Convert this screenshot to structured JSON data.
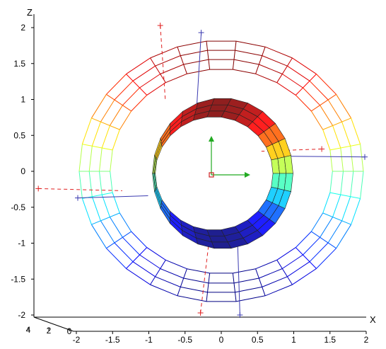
{
  "chart_data": {
    "type": "3d-wireframe-surface",
    "title": "",
    "axes": {
      "x": {
        "label": "X",
        "ticks": [
          -2,
          -1.5,
          -1,
          -0.5,
          0,
          0.5,
          1,
          1.5,
          2
        ],
        "tick_labels": [
          "-2",
          "-1.5",
          "-1",
          "-0.5",
          "0",
          "0.5",
          "1",
          "1.5",
          "2"
        ],
        "range": [
          -2,
          2
        ]
      },
      "y": {
        "label": "",
        "ticks": [
          0,
          2,
          4
        ],
        "tick_labels": [
          "0",
          "2",
          "4"
        ],
        "range": [
          0,
          4
        ]
      },
      "z": {
        "label": "Z",
        "ticks": [
          -2,
          -1.5,
          -1,
          -0.5,
          0,
          0.5,
          1,
          1.5,
          2
        ],
        "tick_labels": [
          "-2",
          "-1.5",
          "-1",
          "-0.5",
          "0",
          "0.5",
          "1",
          "1.5",
          "2"
        ],
        "range": [
          -2,
          2
        ]
      }
    },
    "objects": [
      {
        "kind": "wireframe-ring",
        "inner_radius": 1.5,
        "outer_radius": 2.0,
        "colormap": "jet-by-height"
      },
      {
        "kind": "shaded-cylinder-ring",
        "radius": 1.0,
        "colormap": "jet-by-height"
      }
    ],
    "frame_axes": [
      {
        "name": "y-arrow",
        "color": "#22aa22"
      },
      {
        "name": "x-arrow",
        "color": "#22aa22"
      },
      {
        "name": "origin-marker",
        "color": "#cc2222"
      }
    ],
    "connectors": [
      {
        "style": "dashed",
        "color": "#e02020"
      },
      {
        "style": "solid",
        "color": "#3a3ab0"
      }
    ]
  }
}
